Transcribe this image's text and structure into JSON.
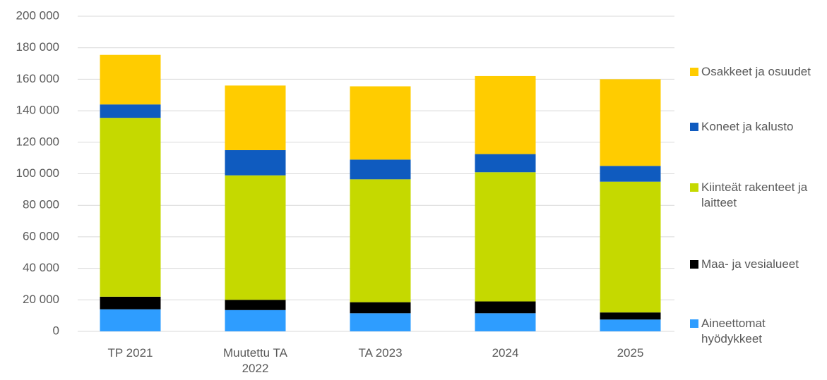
{
  "chart_data": {
    "type": "stacked_bar",
    "categories": [
      "TP 2021",
      "Muutettu TA 2022",
      "TA 2023",
      "2024",
      "2025"
    ],
    "series": [
      {
        "name": "Aineettomat hyödykkeet",
        "color": "#2e9dff",
        "values": [
          14000,
          13500,
          11500,
          11500,
          7500
        ]
      },
      {
        "name": "Maa- ja vesialueet",
        "color": "#000000",
        "values": [
          8000,
          6500,
          7000,
          7500,
          4500
        ]
      },
      {
        "name": "Kiinteät rakenteet ja laitteet",
        "color": "#c5d900",
        "values": [
          113500,
          79000,
          78000,
          82000,
          83000
        ]
      },
      {
        "name": "Koneet ja kalusto",
        "color": "#0f5bbf",
        "values": [
          8500,
          16000,
          12500,
          11500,
          10000
        ]
      },
      {
        "name": "Osakkeet ja osuudet",
        "color": "#ffcc00",
        "values": [
          31500,
          41000,
          46500,
          49500,
          55000
        ]
      }
    ],
    "ylim": [
      0,
      200000
    ],
    "yticks": [
      0,
      {
        "value": 20000,
        "label": "20 000"
      },
      {
        "value": 40000,
        "label": "40 000"
      },
      {
        "value": 60000,
        "label": "60 000"
      },
      {
        "value": 80000,
        "label": "80 000"
      },
      {
        "value": 100000,
        "label": "100 000"
      },
      {
        "value": 120000,
        "label": "120 000"
      },
      {
        "value": 140000,
        "label": "140 000"
      },
      {
        "value": 160000,
        "label": "160 000"
      },
      {
        "value": 180000,
        "label": "180 000"
      },
      {
        "value": 200000,
        "label": "200 000"
      }
    ],
    "grid": true,
    "legend": "right"
  }
}
